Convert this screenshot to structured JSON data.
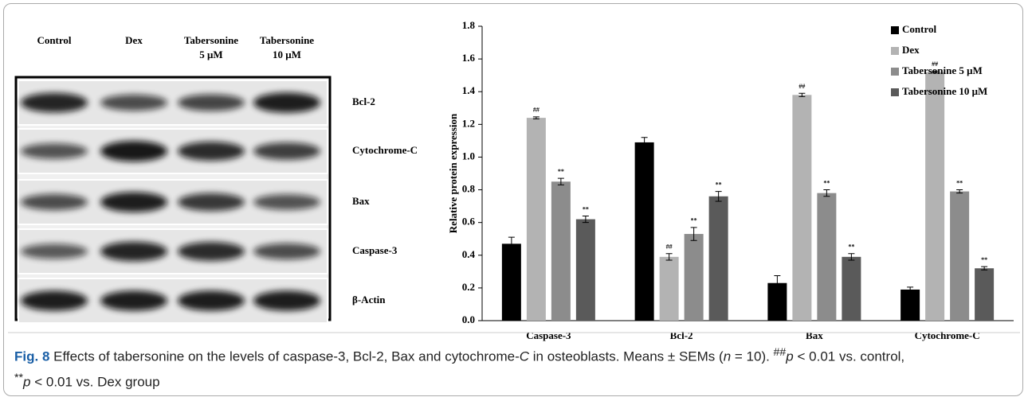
{
  "chart_data": {
    "type": "bar",
    "y_label": "Relative protein expression",
    "categories": [
      "Caspase-3",
      "Bcl-2",
      "Bax",
      "Cytochrome-C"
    ],
    "series": [
      {
        "name": "Control",
        "color": "#000000",
        "values": [
          0.47,
          1.09,
          0.23,
          0.19
        ],
        "errors": [
          0.04,
          0.03,
          0.045,
          0.015
        ]
      },
      {
        "name": "Dex",
        "color": "#b3b3b3",
        "values": [
          1.24,
          0.39,
          1.38,
          1.52
        ],
        "errors": [
          0.006,
          0.02,
          0.01,
          0.006
        ],
        "annotations": [
          "##",
          "##",
          "##",
          "##"
        ]
      },
      {
        "name": "Tabersonine 5 μM",
        "color": "#8c8c8c",
        "values": [
          0.85,
          0.53,
          0.78,
          0.79
        ],
        "errors": [
          0.02,
          0.04,
          0.02,
          0.01
        ],
        "annotations": [
          "**",
          "**",
          "**",
          "**"
        ]
      },
      {
        "name": "Tabersonine 10 μM",
        "color": "#5a5a5a",
        "values": [
          0.62,
          0.76,
          0.39,
          0.32
        ],
        "errors": [
          0.02,
          0.03,
          0.02,
          0.01
        ],
        "annotations": [
          "**",
          "**",
          "**",
          "**"
        ]
      }
    ],
    "ylim": [
      0,
      1.8
    ],
    "yticks": [
      {
        "value": 0,
        "label": "0.0"
      },
      0.2,
      0.4,
      0.6,
      0.8,
      {
        "value": 1,
        "label": "1.0"
      },
      1.2,
      1.4,
      1.6,
      1.8
    ],
    "legend": "top-right"
  },
  "blot": {
    "columns": [
      [
        "Control"
      ],
      [
        "Dex"
      ],
      [
        "Tabersonine",
        "5 μM"
      ],
      [
        "Tabersonine",
        "10 μM"
      ]
    ],
    "rows": [
      "Bcl-2",
      "Cytochrome-C",
      "Bax",
      "Caspase-3",
      "β-Actin"
    ]
  },
  "caption": [
    "Fig. 8",
    " Effects of tabersonine on the levels of caspase-3, Bcl-2, Bax and cytochrome-",
    "C",
    " in osteoblasts. Means ± SEMs (",
    "n",
    " = 10). ",
    "##",
    "p",
    " < 0.01 vs. control,",
    "**",
    "p",
    " < 0.01 vs. Dex group"
  ]
}
